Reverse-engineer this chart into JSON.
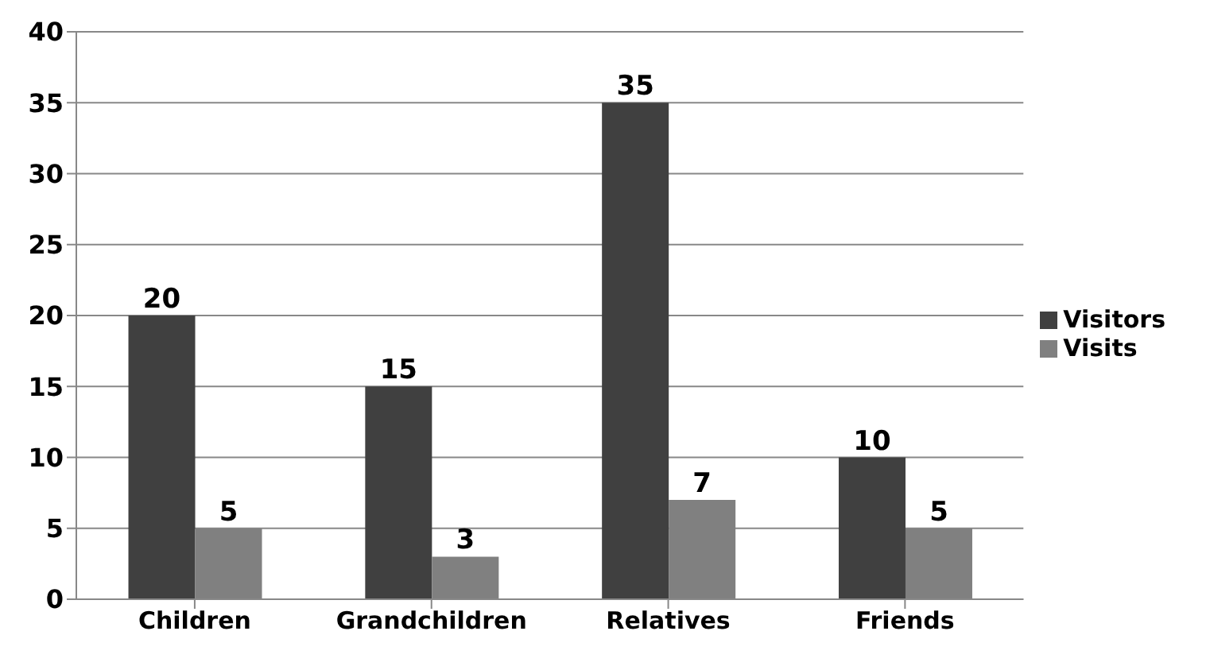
{
  "chart_data": {
    "type": "bar",
    "categories": [
      "Children",
      "Grandchildren",
      "Relatives",
      "Friends"
    ],
    "series": [
      {
        "name": "Visitors",
        "color": "#404040",
        "values": [
          20,
          15,
          35,
          10
        ]
      },
      {
        "name": "Visits",
        "color": "#808080",
        "values": [
          5,
          3,
          7,
          5
        ]
      }
    ],
    "ylim": [
      0,
      40
    ],
    "yticks": [
      0,
      5,
      10,
      15,
      20,
      25,
      30,
      35,
      40
    ],
    "grid": "y",
    "legend": "right",
    "data_labels": true
  }
}
